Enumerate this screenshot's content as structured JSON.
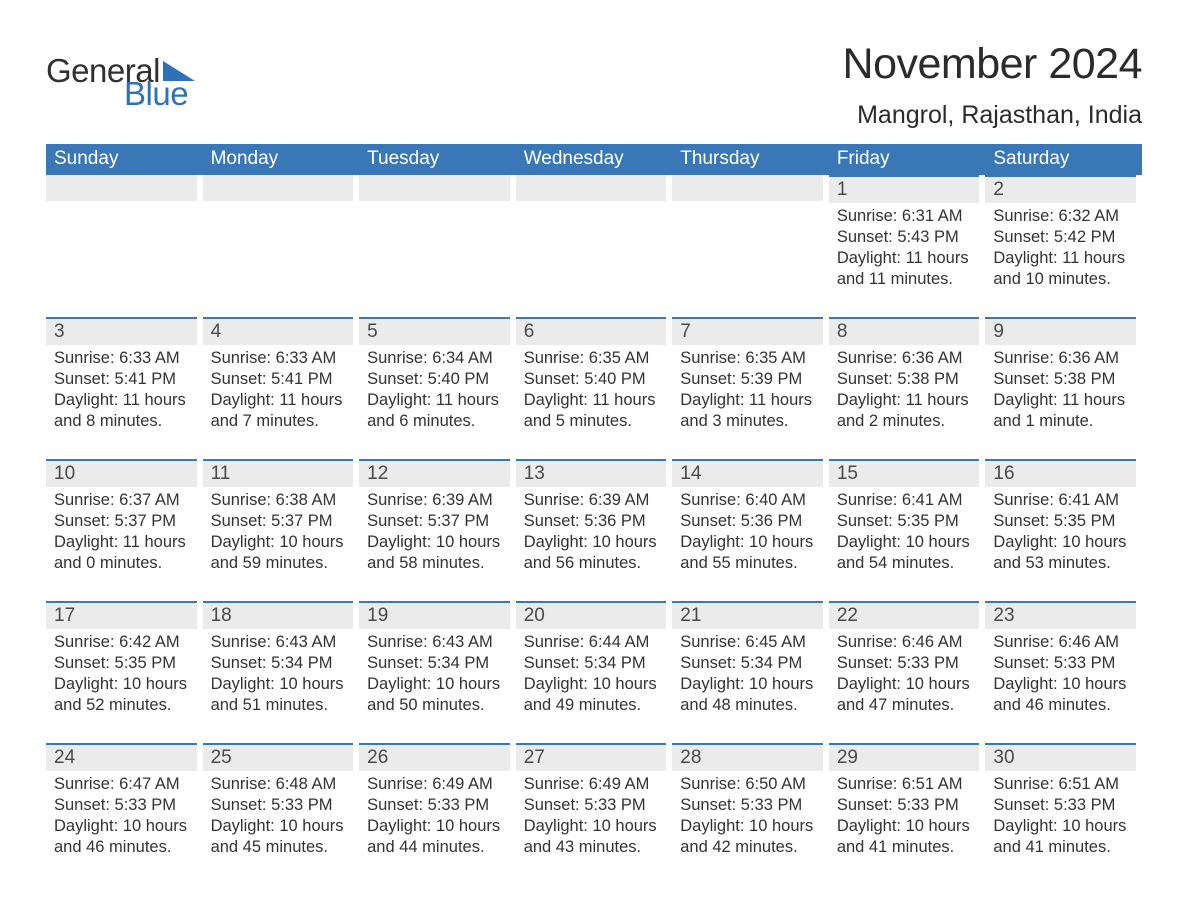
{
  "brand": {
    "top": "General",
    "bottom": "Blue",
    "accent": "#2f71b8"
  },
  "title": "November 2024",
  "location": "Mangrol, Rajasthan, India",
  "colors": {
    "header_bg": "#3a77b7",
    "header_text": "#ffffff",
    "daynum_bg": "#ebebeb",
    "daynum_border": "#3a77b7",
    "body_text": "#333333",
    "page_bg": "#ffffff"
  },
  "typography": {
    "title_fontsize": 43,
    "location_fontsize": 25,
    "header_fontsize": 19,
    "daynum_fontsize": 19,
    "cell_fontsize": 16.5,
    "font_family": "Arial"
  },
  "weekdays": [
    "Sunday",
    "Monday",
    "Tuesday",
    "Wednesday",
    "Thursday",
    "Friday",
    "Saturday"
  ],
  "weeks": [
    [
      {
        "day": null
      },
      {
        "day": null
      },
      {
        "day": null
      },
      {
        "day": null
      },
      {
        "day": null
      },
      {
        "day": "1",
        "sunrise": "Sunrise: 6:31 AM",
        "sunset": "Sunset: 5:43 PM",
        "daylight": "Daylight: 11 hours and 11 minutes."
      },
      {
        "day": "2",
        "sunrise": "Sunrise: 6:32 AM",
        "sunset": "Sunset: 5:42 PM",
        "daylight": "Daylight: 11 hours and 10 minutes."
      }
    ],
    [
      {
        "day": "3",
        "sunrise": "Sunrise: 6:33 AM",
        "sunset": "Sunset: 5:41 PM",
        "daylight": "Daylight: 11 hours and 8 minutes."
      },
      {
        "day": "4",
        "sunrise": "Sunrise: 6:33 AM",
        "sunset": "Sunset: 5:41 PM",
        "daylight": "Daylight: 11 hours and 7 minutes."
      },
      {
        "day": "5",
        "sunrise": "Sunrise: 6:34 AM",
        "sunset": "Sunset: 5:40 PM",
        "daylight": "Daylight: 11 hours and 6 minutes."
      },
      {
        "day": "6",
        "sunrise": "Sunrise: 6:35 AM",
        "sunset": "Sunset: 5:40 PM",
        "daylight": "Daylight: 11 hours and 5 minutes."
      },
      {
        "day": "7",
        "sunrise": "Sunrise: 6:35 AM",
        "sunset": "Sunset: 5:39 PM",
        "daylight": "Daylight: 11 hours and 3 minutes."
      },
      {
        "day": "8",
        "sunrise": "Sunrise: 6:36 AM",
        "sunset": "Sunset: 5:38 PM",
        "daylight": "Daylight: 11 hours and 2 minutes."
      },
      {
        "day": "9",
        "sunrise": "Sunrise: 6:36 AM",
        "sunset": "Sunset: 5:38 PM",
        "daylight": "Daylight: 11 hours and 1 minute."
      }
    ],
    [
      {
        "day": "10",
        "sunrise": "Sunrise: 6:37 AM",
        "sunset": "Sunset: 5:37 PM",
        "daylight": "Daylight: 11 hours and 0 minutes."
      },
      {
        "day": "11",
        "sunrise": "Sunrise: 6:38 AM",
        "sunset": "Sunset: 5:37 PM",
        "daylight": "Daylight: 10 hours and 59 minutes."
      },
      {
        "day": "12",
        "sunrise": "Sunrise: 6:39 AM",
        "sunset": "Sunset: 5:37 PM",
        "daylight": "Daylight: 10 hours and 58 minutes."
      },
      {
        "day": "13",
        "sunrise": "Sunrise: 6:39 AM",
        "sunset": "Sunset: 5:36 PM",
        "daylight": "Daylight: 10 hours and 56 minutes."
      },
      {
        "day": "14",
        "sunrise": "Sunrise: 6:40 AM",
        "sunset": "Sunset: 5:36 PM",
        "daylight": "Daylight: 10 hours and 55 minutes."
      },
      {
        "day": "15",
        "sunrise": "Sunrise: 6:41 AM",
        "sunset": "Sunset: 5:35 PM",
        "daylight": "Daylight: 10 hours and 54 minutes."
      },
      {
        "day": "16",
        "sunrise": "Sunrise: 6:41 AM",
        "sunset": "Sunset: 5:35 PM",
        "daylight": "Daylight: 10 hours and 53 minutes."
      }
    ],
    [
      {
        "day": "17",
        "sunrise": "Sunrise: 6:42 AM",
        "sunset": "Sunset: 5:35 PM",
        "daylight": "Daylight: 10 hours and 52 minutes."
      },
      {
        "day": "18",
        "sunrise": "Sunrise: 6:43 AM",
        "sunset": "Sunset: 5:34 PM",
        "daylight": "Daylight: 10 hours and 51 minutes."
      },
      {
        "day": "19",
        "sunrise": "Sunrise: 6:43 AM",
        "sunset": "Sunset: 5:34 PM",
        "daylight": "Daylight: 10 hours and 50 minutes."
      },
      {
        "day": "20",
        "sunrise": "Sunrise: 6:44 AM",
        "sunset": "Sunset: 5:34 PM",
        "daylight": "Daylight: 10 hours and 49 minutes."
      },
      {
        "day": "21",
        "sunrise": "Sunrise: 6:45 AM",
        "sunset": "Sunset: 5:34 PM",
        "daylight": "Daylight: 10 hours and 48 minutes."
      },
      {
        "day": "22",
        "sunrise": "Sunrise: 6:46 AM",
        "sunset": "Sunset: 5:33 PM",
        "daylight": "Daylight: 10 hours and 47 minutes."
      },
      {
        "day": "23",
        "sunrise": "Sunrise: 6:46 AM",
        "sunset": "Sunset: 5:33 PM",
        "daylight": "Daylight: 10 hours and 46 minutes."
      }
    ],
    [
      {
        "day": "24",
        "sunrise": "Sunrise: 6:47 AM",
        "sunset": "Sunset: 5:33 PM",
        "daylight": "Daylight: 10 hours and 46 minutes."
      },
      {
        "day": "25",
        "sunrise": "Sunrise: 6:48 AM",
        "sunset": "Sunset: 5:33 PM",
        "daylight": "Daylight: 10 hours and 45 minutes."
      },
      {
        "day": "26",
        "sunrise": "Sunrise: 6:49 AM",
        "sunset": "Sunset: 5:33 PM",
        "daylight": "Daylight: 10 hours and 44 minutes."
      },
      {
        "day": "27",
        "sunrise": "Sunrise: 6:49 AM",
        "sunset": "Sunset: 5:33 PM",
        "daylight": "Daylight: 10 hours and 43 minutes."
      },
      {
        "day": "28",
        "sunrise": "Sunrise: 6:50 AM",
        "sunset": "Sunset: 5:33 PM",
        "daylight": "Daylight: 10 hours and 42 minutes."
      },
      {
        "day": "29",
        "sunrise": "Sunrise: 6:51 AM",
        "sunset": "Sunset: 5:33 PM",
        "daylight": "Daylight: 10 hours and 41 minutes."
      },
      {
        "day": "30",
        "sunrise": "Sunrise: 6:51 AM",
        "sunset": "Sunset: 5:33 PM",
        "daylight": "Daylight: 10 hours and 41 minutes."
      }
    ]
  ]
}
